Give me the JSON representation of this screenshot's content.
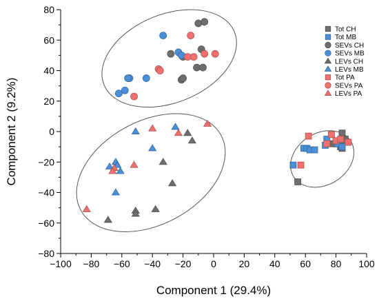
{
  "chart_data": {
    "type": "scatter",
    "title": "",
    "xlabel": "Component 1 (29.4%)",
    "ylabel": "Component 2 (9.2%)",
    "xlim": [
      -100,
      100
    ],
    "ylim": [
      -80,
      80
    ],
    "xticks": [
      -100,
      -80,
      -60,
      -40,
      -20,
      0,
      20,
      40,
      60,
      80,
      100
    ],
    "yticks": [
      -80,
      -60,
      -40,
      -20,
      0,
      20,
      40,
      60,
      80
    ],
    "grid": false,
    "legend_position": "top-right",
    "series": [
      {
        "name": "Tot CH",
        "marker": "square",
        "color": "#6e6e6e",
        "points": [
          [
            55,
            -33
          ],
          [
            80,
            -8
          ],
          [
            83,
            -10
          ],
          [
            84,
            -11
          ],
          [
            85,
            -6
          ],
          [
            86,
            -5
          ],
          [
            84,
            -1
          ],
          [
            87,
            -7
          ],
          [
            78,
            -8
          ]
        ]
      },
      {
        "name": "Tot MB",
        "marker": "square",
        "color": "#4a90d9",
        "points": [
          [
            52,
            -22
          ],
          [
            59,
            -11
          ],
          [
            61,
            -11
          ],
          [
            63,
            -12
          ],
          [
            66,
            -12
          ],
          [
            73,
            -9
          ],
          [
            74,
            -5
          ],
          [
            81,
            -8
          ],
          [
            84,
            -10
          ]
        ]
      },
      {
        "name": "SEVs CH",
        "marker": "circle",
        "color": "#6e6e6e",
        "points": [
          [
            -10,
            71
          ],
          [
            -6,
            72
          ],
          [
            -28,
            51
          ],
          [
            -20,
            49
          ],
          [
            -8,
            54
          ],
          [
            -11,
            42
          ],
          [
            -7,
            42
          ],
          [
            -21,
            34
          ],
          [
            -20,
            35
          ]
        ]
      },
      {
        "name": "SEVs MB",
        "marker": "circle",
        "color": "#4a90d9",
        "points": [
          [
            -33,
            63
          ],
          [
            -23,
            52
          ],
          [
            -21,
            50
          ],
          [
            -55,
            35
          ],
          [
            -56,
            35
          ],
          [
            -58,
            27
          ],
          [
            -62,
            25
          ],
          [
            -44,
            35
          ]
        ]
      },
      {
        "name": "LEVs CH",
        "marker": "triangle",
        "color": "#6e6e6e",
        "points": [
          [
            -17,
            -1
          ],
          [
            -14,
            -6
          ],
          [
            -33,
            -20
          ],
          [
            -27,
            -34
          ],
          [
            -51,
            -52
          ],
          [
            -51,
            -54
          ],
          [
            -38,
            -51
          ],
          [
            -69,
            -58
          ]
        ]
      },
      {
        "name": "LEVs MB",
        "marker": "triangle",
        "color": "#4a90d9",
        "points": [
          [
            -51,
            0
          ],
          [
            -25,
            3
          ],
          [
            -40,
            -11
          ],
          [
            -64,
            -20
          ],
          [
            -63,
            -22
          ],
          [
            -68,
            -23
          ],
          [
            -61,
            -26
          ],
          [
            -64,
            -40
          ]
        ]
      },
      {
        "name": "Tot PA",
        "marker": "square",
        "color": "#f07070",
        "points": [
          [
            57,
            -22
          ],
          [
            62,
            -3
          ],
          [
            77,
            -2
          ],
          [
            80,
            -6
          ],
          [
            83,
            -5
          ],
          [
            88,
            -7
          ],
          [
            74,
            -8
          ]
        ]
      },
      {
        "name": "SEVs PA",
        "marker": "circle",
        "color": "#f07070",
        "points": [
          [
            -15,
            63
          ],
          [
            -36,
            41
          ],
          [
            -35,
            40
          ],
          [
            -17,
            49
          ],
          [
            -13,
            49
          ],
          [
            -6,
            51
          ],
          [
            1,
            51
          ],
          [
            -52,
            23
          ]
        ]
      },
      {
        "name": "LEVs PA",
        "marker": "triangle",
        "color": "#f07070",
        "points": [
          [
            -40,
            2
          ],
          [
            -23,
            -1
          ],
          [
            -4,
            5
          ],
          [
            -52,
            -22
          ],
          [
            -65,
            -24
          ],
          [
            -66,
            -26
          ],
          [
            -83,
            -51
          ]
        ]
      }
    ],
    "ellipses": [
      {
        "cx": -29,
        "cy": 48,
        "rx": 46,
        "ry": 29,
        "angle_deg": 22
      },
      {
        "cx": -41,
        "cy": -27,
        "rx": 52,
        "ry": 34,
        "angle_deg": 28
      },
      {
        "cx": 71,
        "cy": -18,
        "rx": 22,
        "ry": 17,
        "angle_deg": 32
      }
    ]
  }
}
